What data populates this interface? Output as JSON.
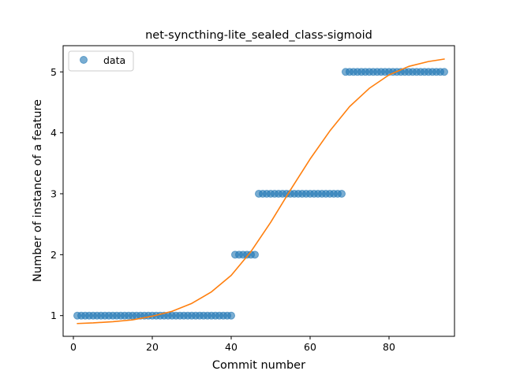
{
  "chart_data": {
    "type": "scatter",
    "title": "net-syncthing-lite_sealed_class-sigmoid",
    "xlabel": "Commit number",
    "ylabel": "Number of instance of a feature",
    "xlim": [
      -2.6,
      96.6
    ],
    "ylim": [
      0.66,
      5.43
    ],
    "xticks": [
      0,
      20,
      40,
      60,
      80
    ],
    "yticks": [
      1,
      2,
      3,
      4,
      5
    ],
    "legend": {
      "position": "upper-left",
      "entries": [
        "data"
      ]
    },
    "colors": {
      "data": "#1f77b4",
      "fit": "#ff7f0e",
      "axis": "#000000"
    },
    "series": [
      {
        "name": "data",
        "kind": "scatter",
        "segments": [
          {
            "x_from": 1,
            "x_to": 40,
            "y": 1
          },
          {
            "x_from": 41,
            "x_to": 46,
            "y": 2
          },
          {
            "x_from": 47,
            "x_to": 68,
            "y": 3
          },
          {
            "x_from": 69,
            "x_to": 94,
            "y": 5
          }
        ]
      },
      {
        "kind": "line",
        "points": [
          [
            1,
            0.87
          ],
          [
            5,
            0.88
          ],
          [
            10,
            0.9
          ],
          [
            15,
            0.93
          ],
          [
            20,
            0.99
          ],
          [
            25,
            1.07
          ],
          [
            30,
            1.2
          ],
          [
            35,
            1.39
          ],
          [
            40,
            1.66
          ],
          [
            45,
            2.05
          ],
          [
            50,
            2.53
          ],
          [
            55,
            3.06
          ],
          [
            60,
            3.57
          ],
          [
            65,
            4.03
          ],
          [
            70,
            4.43
          ],
          [
            75,
            4.73
          ],
          [
            80,
            4.95
          ],
          [
            85,
            5.09
          ],
          [
            90,
            5.17
          ],
          [
            94,
            5.21
          ]
        ]
      }
    ]
  }
}
